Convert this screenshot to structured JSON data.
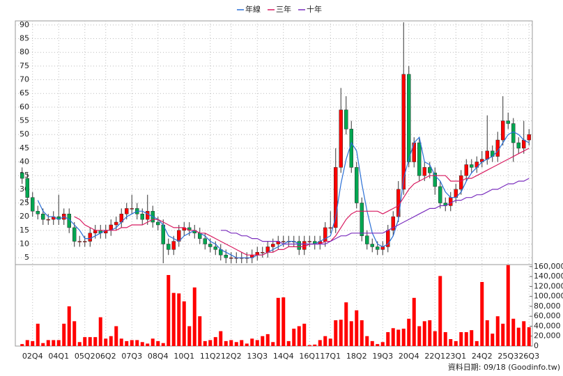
{
  "chart_data": {
    "type": "candlestick",
    "legend": "top",
    "grid": true,
    "categories": [
      null,
      null,
      "02Q4",
      null,
      null,
      null,
      null,
      "04Q1",
      null,
      null,
      null,
      null,
      "05Q2",
      null,
      null,
      null,
      "06Q2",
      null,
      null,
      null,
      null,
      "07Q3",
      null,
      null,
      null,
      null,
      "08Q4",
      null,
      null,
      null,
      null,
      "10Q1",
      null,
      null,
      null,
      null,
      "11Q2",
      null,
      null,
      null,
      "12Q2",
      null,
      null,
      null,
      null,
      "13Q3",
      null,
      null,
      null,
      null,
      "14Q4",
      null,
      null,
      null,
      null,
      "16Q1",
      null,
      null,
      null,
      "17Q1",
      null,
      null,
      null,
      null,
      "18Q2",
      null,
      null,
      null,
      null,
      "19Q3",
      null,
      null,
      null,
      null,
      "20Q4",
      null,
      null,
      null,
      null,
      "22Q1",
      null,
      null,
      null,
      "23Q1",
      null,
      null,
      null,
      null,
      "24Q2",
      null,
      null,
      null,
      null,
      "25Q3",
      null,
      null,
      null,
      "26Q3"
    ],
    "open": [
      36,
      34,
      27,
      22,
      21,
      19,
      19,
      20,
      19,
      21,
      16,
      11,
      11,
      11,
      14,
      15,
      14,
      15,
      17,
      18,
      21,
      23,
      23,
      21,
      19,
      22,
      18,
      17,
      10,
      8,
      11,
      15,
      16,
      15,
      14,
      12,
      10,
      9,
      8,
      6,
      5,
      5,
      5,
      5,
      5,
      6,
      7,
      7,
      9,
      10,
      11,
      11,
      11,
      11,
      8,
      11,
      11,
      10,
      11,
      16,
      16,
      38,
      59,
      52,
      38,
      25,
      13,
      10,
      9,
      8,
      9,
      15,
      20,
      30,
      72,
      40,
      47,
      35,
      38,
      36,
      31,
      25,
      24,
      27,
      30,
      35,
      39,
      38,
      40,
      41,
      44,
      42,
      48,
      55,
      54,
      47,
      45,
      48
    ],
    "high": [
      38,
      36,
      29,
      24,
      23,
      21,
      22,
      28,
      23,
      23,
      18,
      13,
      13,
      16,
      17,
      17,
      17,
      19,
      20,
      23,
      25,
      28,
      25,
      23,
      28,
      24,
      20,
      19,
      12,
      13,
      17,
      18,
      18,
      17,
      16,
      14,
      12,
      11,
      10,
      8,
      7,
      7,
      7,
      7,
      8,
      9,
      9,
      11,
      12,
      13,
      13,
      13,
      13,
      13,
      13,
      13,
      13,
      13,
      18,
      22,
      45,
      67,
      64,
      55,
      40,
      27,
      15,
      12,
      11,
      11,
      17,
      22,
      33,
      91,
      75,
      49,
      49,
      40,
      40,
      38,
      33,
      27,
      29,
      32,
      37,
      41,
      41,
      42,
      44,
      57,
      46,
      51,
      64,
      58,
      56,
      49,
      55,
      52
    ],
    "low": [
      32,
      25,
      20,
      19,
      17,
      17,
      17,
      17,
      17,
      14,
      9,
      9,
      9,
      9,
      12,
      12,
      12,
      13,
      15,
      16,
      19,
      21,
      19,
      17,
      17,
      16,
      15,
      3,
      6,
      6,
      9,
      13,
      13,
      12,
      10,
      8,
      7,
      6,
      4,
      3,
      3,
      3,
      3,
      3,
      3,
      4,
      5,
      5,
      7,
      8,
      9,
      9,
      9,
      6,
      6,
      9,
      8,
      8,
      9,
      14,
      14,
      36,
      50,
      36,
      23,
      11,
      8,
      7,
      6,
      6,
      7,
      13,
      18,
      28,
      38,
      38,
      33,
      33,
      34,
      28,
      23,
      22,
      22,
      25,
      28,
      33,
      36,
      36,
      38,
      39,
      40,
      40,
      46,
      52,
      40,
      43,
      43,
      46
    ],
    "close": [
      34,
      27,
      22,
      21,
      19,
      19,
      20,
      19,
      21,
      16,
      11,
      11,
      11,
      14,
      15,
      14,
      15,
      17,
      18,
      21,
      23,
      23,
      21,
      19,
      22,
      18,
      17,
      10,
      8,
      11,
      15,
      16,
      15,
      14,
      12,
      10,
      9,
      8,
      6,
      5,
      5,
      5,
      5,
      5,
      6,
      7,
      7,
      9,
      10,
      11,
      11,
      11,
      11,
      8,
      11,
      11,
      10,
      11,
      16,
      16,
      38,
      59,
      52,
      38,
      25,
      13,
      10,
      9,
      8,
      9,
      15,
      20,
      30,
      72,
      40,
      47,
      35,
      38,
      36,
      31,
      25,
      24,
      27,
      30,
      35,
      39,
      38,
      40,
      41,
      44,
      42,
      48,
      55,
      54,
      47,
      45,
      48,
      50
    ],
    "up_color": "#ff0000",
    "down_color": "#00a651",
    "series": [
      {
        "name": "年線",
        "color": "#2a6fd6",
        "values": [
          null,
          null,
          null,
          26,
          22,
          20,
          20,
          19,
          20,
          19,
          17,
          15,
          12,
          12,
          13,
          14,
          15,
          15,
          16,
          18,
          20,
          21,
          22,
          22,
          21,
          20,
          19,
          17,
          13,
          12,
          11,
          13,
          14,
          15,
          14,
          13,
          11,
          10,
          8,
          7,
          6,
          5,
          5,
          5,
          5,
          6,
          6,
          7,
          8,
          9,
          10,
          11,
          11,
          10,
          10,
          10,
          10,
          11,
          12,
          13,
          20,
          32,
          41,
          47,
          44,
          32,
          22,
          14,
          10,
          9,
          10,
          13,
          19,
          34,
          41,
          47,
          49,
          40,
          39,
          35,
          33,
          29,
          27,
          27,
          29,
          33,
          36,
          38,
          40,
          41,
          42,
          44,
          47,
          50,
          51,
          50,
          48,
          47
        ]
      },
      {
        "name": "三年",
        "color": "#d81b60",
        "values": [
          null,
          null,
          null,
          null,
          null,
          null,
          null,
          null,
          null,
          null,
          20,
          19,
          17,
          16,
          15,
          15,
          15,
          15,
          15,
          16,
          16,
          17,
          17,
          17,
          18,
          19,
          19,
          18,
          17,
          16,
          16,
          16,
          15,
          15,
          14,
          14,
          13,
          12,
          11,
          10,
          9,
          8,
          7,
          6,
          6,
          6,
          6,
          7,
          7,
          8,
          8,
          9,
          9,
          9,
          9,
          10,
          10,
          10,
          11,
          11,
          13,
          16,
          19,
          21,
          22,
          22,
          22,
          22,
          22,
          21,
          22,
          23,
          24,
          27,
          30,
          32,
          33,
          34,
          35,
          35,
          35,
          35,
          33,
          33,
          33,
          34,
          34,
          35,
          36,
          37,
          38,
          39,
          40,
          41,
          42,
          43,
          44,
          45
        ]
      },
      {
        "name": "十年",
        "color": "#7b2fbe",
        "values": [
          null,
          null,
          null,
          null,
          null,
          null,
          null,
          null,
          null,
          null,
          null,
          null,
          null,
          null,
          null,
          null,
          null,
          null,
          null,
          null,
          null,
          null,
          null,
          null,
          null,
          null,
          null,
          null,
          null,
          null,
          null,
          null,
          null,
          null,
          null,
          null,
          null,
          null,
          15,
          15,
          14,
          14,
          13,
          13,
          12,
          12,
          11,
          11,
          11,
          11,
          10,
          10,
          10,
          10,
          10,
          10,
          10,
          10,
          10,
          11,
          12,
          13,
          13,
          14,
          14,
          14,
          14,
          14,
          14,
          14,
          15,
          16,
          17,
          18,
          19,
          20,
          21,
          22,
          23,
          23,
          24,
          24,
          25,
          26,
          26,
          27,
          27,
          28,
          28,
          29,
          30,
          30,
          31,
          32,
          32,
          33,
          33,
          34
        ]
      }
    ],
    "ylim": [
      2.5,
      91.5
    ],
    "yticks": [
      5,
      10,
      15,
      20,
      25,
      30,
      35,
      40,
      45,
      50,
      55,
      60,
      65,
      70,
      75,
      80,
      85,
      90
    ],
    "volume": {
      "color": "#ff0000",
      "values": [
        4000,
        12000,
        10000,
        45000,
        6000,
        12000,
        12000,
        12000,
        45000,
        80000,
        50000,
        8000,
        18000,
        18000,
        18000,
        58000,
        15000,
        20000,
        40000,
        15000,
        10000,
        12000,
        12000,
        8000,
        5000,
        15000,
        10000,
        6000,
        143000,
        107000,
        106000,
        90000,
        40000,
        118000,
        60000,
        10000,
        12000,
        18000,
        30000,
        10000,
        12000,
        8000,
        12000,
        5000,
        15000,
        12000,
        20000,
        24000,
        8000,
        97000,
        98000,
        10000,
        35000,
        40000,
        45000,
        2000,
        3000,
        12000,
        20000,
        15000,
        52000,
        53000,
        88000,
        50000,
        72000,
        52000,
        20000,
        10000,
        4000,
        8000,
        28000,
        36000,
        33000,
        35000,
        55000,
        97000,
        40000,
        50000,
        52000,
        30000,
        141000,
        28000,
        14000,
        10000,
        28000,
        28000,
        32000,
        10000,
        129000,
        52000,
        25000,
        60000,
        45000,
        163000,
        55000,
        37000,
        50000,
        38000
      ],
      "ylim": [
        0,
        164000
      ],
      "yticks": [
        0,
        {
          "value": 20000,
          "label": "20,000"
        },
        {
          "value": 40000,
          "label": "40,000"
        },
        {
          "value": 60000,
          "label": "60,000"
        },
        {
          "value": 80000,
          "label": "80,000"
        },
        {
          "value": 100000,
          "label": "100,000"
        },
        {
          "value": 120000,
          "label": "120,000"
        },
        {
          "value": 140000,
          "label": "140,000"
        },
        {
          "value": 160000,
          "label": "160,000"
        }
      ]
    },
    "footer": "資料日期: 09/18 (Goodinfo.tw)"
  }
}
